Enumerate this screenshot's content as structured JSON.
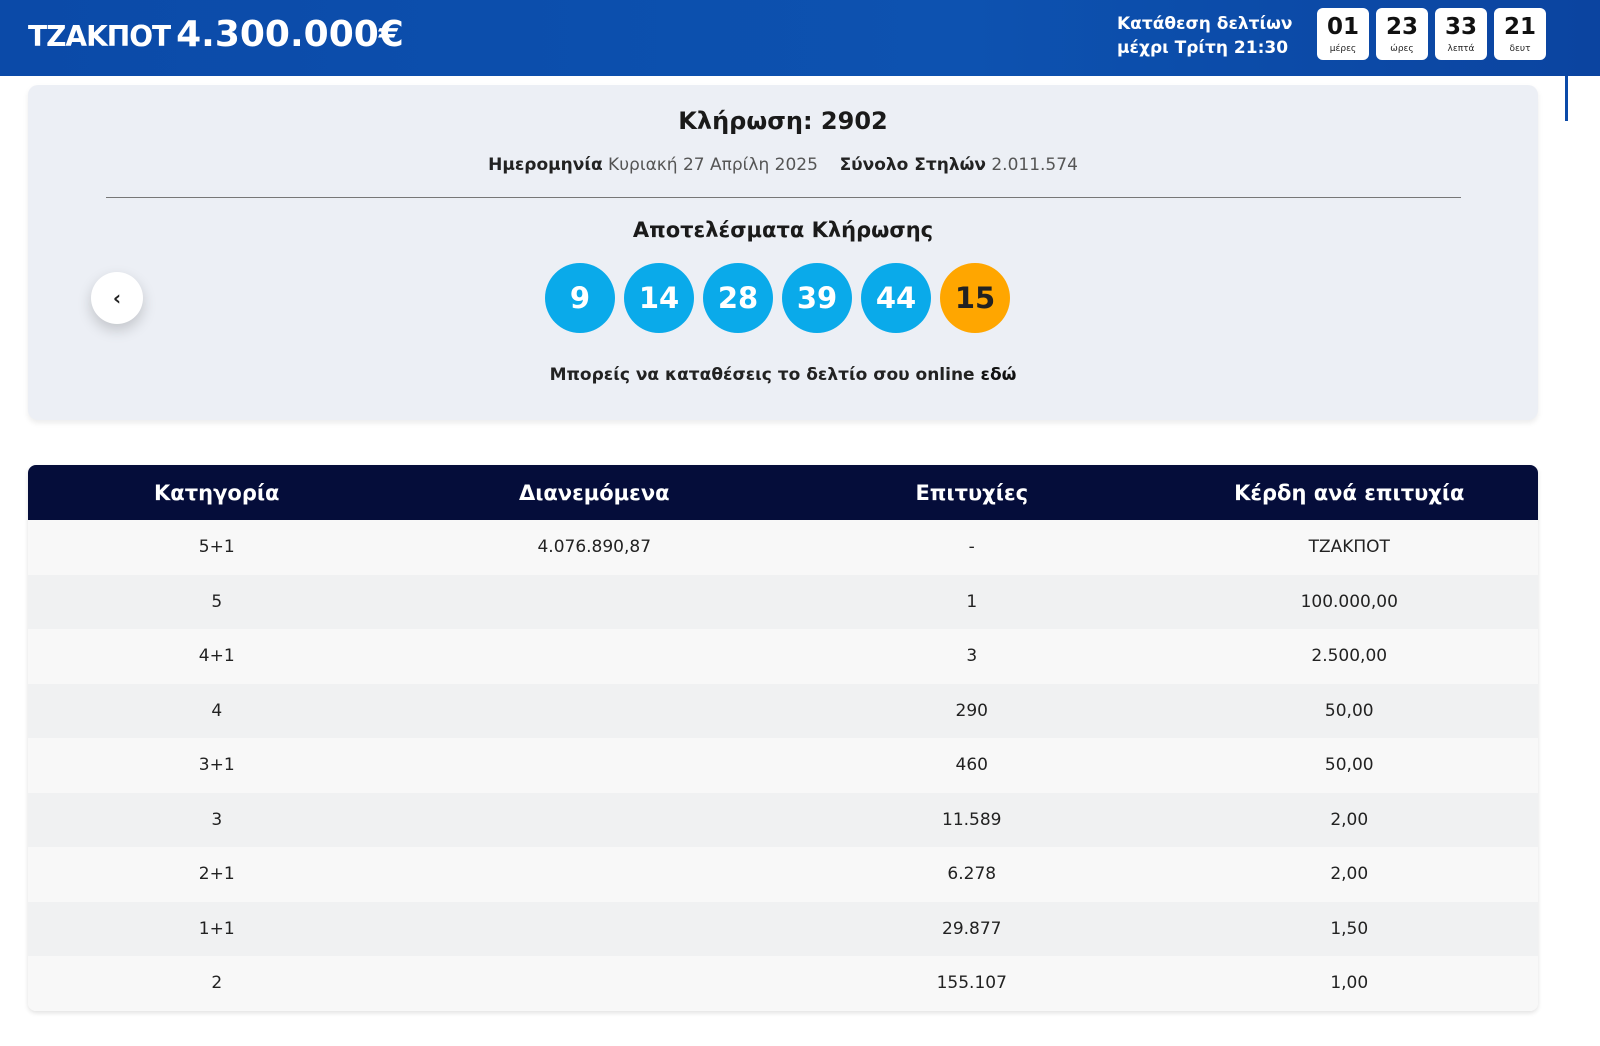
{
  "header": {
    "jackpot_label": "ΤΖΑΚΠΟΤ",
    "jackpot_amount": "4.300.000€",
    "deadline_line1": "Κατάθεση δελτίων",
    "deadline_line2": "μέχρι Τρίτη 21:30",
    "countdown": [
      {
        "value": "01",
        "unit": "μέρες"
      },
      {
        "value": "23",
        "unit": "ώρες"
      },
      {
        "value": "33",
        "unit": "λεπτά"
      },
      {
        "value": "21",
        "unit": "δευτ"
      }
    ]
  },
  "draw": {
    "title": "Κλήρωση: 2902",
    "date_label": "Ημερομηνία",
    "date_value": "Κυριακή 27 Απρίλη 2025",
    "columns_label": "Σύνολο Στηλών",
    "columns_value": "2.011.574",
    "results_title": "Αποτελέσματα Κλήρωσης",
    "numbers": [
      "9",
      "14",
      "28",
      "39",
      "44"
    ],
    "bonus": "15",
    "online_text": "Μπορείς να καταθέσεις το δελτίο σου online",
    "online_link": "εδώ",
    "prev_icon": "chevron-left-icon",
    "colors": {
      "ball": "#0aaaea",
      "bonus": "#ffa600"
    }
  },
  "table": {
    "headers": [
      "Κατηγορία",
      "Διανεμόμενα",
      "Επιτυχίες",
      "Κέρδη ανά επιτυχία"
    ],
    "rows": [
      [
        "5+1",
        "4.076.890,87",
        "-",
        "ΤΖΑΚΠΟΤ"
      ],
      [
        "5",
        "",
        "1",
        "100.000,00"
      ],
      [
        "4+1",
        "",
        "3",
        "2.500,00"
      ],
      [
        "4",
        "",
        "290",
        "50,00"
      ],
      [
        "3+1",
        "",
        "460",
        "50,00"
      ],
      [
        "3",
        "",
        "11.589",
        "2,00"
      ],
      [
        "2+1",
        "",
        "6.278",
        "2,00"
      ],
      [
        "1+1",
        "",
        "29.877",
        "1,50"
      ],
      [
        "2",
        "",
        "155.107",
        "1,00"
      ]
    ]
  }
}
